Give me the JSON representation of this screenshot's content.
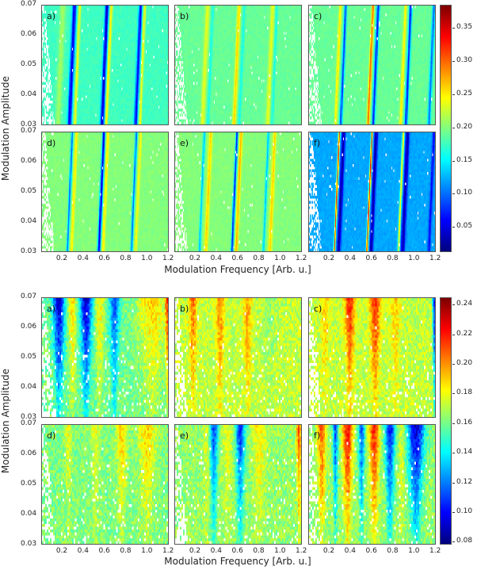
{
  "chart_data": [
    {
      "type": "heatmap",
      "xlabel": "Modulation Frequency [Arb. u.]",
      "ylabel": "Modulation Amplitude",
      "xlim": [
        0,
        1.2
      ],
      "ylim": [
        0.03,
        0.07
      ],
      "xticks": [
        "0.2",
        "0.4",
        "0.6",
        "0.8",
        "1.0",
        "1.2"
      ],
      "yticks": [
        "0.03",
        "0.04",
        "0.05",
        "0.06",
        "0.07"
      ],
      "colorbar": {
        "range": [
          0.012,
          0.385
        ],
        "ticks": [
          "0.05",
          "0.10",
          "0.15",
          "0.20",
          "0.25",
          "0.30",
          "0.35"
        ]
      },
      "tilt": 1.2,
      "noise": 0.006,
      "grow": 0,
      "panels": [
        {
          "label": "a)",
          "background": 0.175,
          "features": [
            {
              "freq": 0.31,
              "value": 0.05,
              "width": 0.014
            },
            {
              "freq": 0.36,
              "value": 0.24,
              "width": 0.01
            },
            {
              "freq": 0.62,
              "value": 0.04,
              "width": 0.013
            },
            {
              "freq": 0.66,
              "value": 0.25,
              "width": 0.01
            },
            {
              "freq": 0.94,
              "value": 0.06,
              "width": 0.012
            },
            {
              "freq": 0.98,
              "value": 0.24,
              "width": 0.01
            },
            {
              "freq": 0.2,
              "value": 0.21,
              "width": 0.02
            }
          ]
        },
        {
          "label": "b)",
          "background": 0.19,
          "features": [
            {
              "freq": 0.31,
              "value": 0.235,
              "width": 0.015
            },
            {
              "freq": 0.36,
              "value": 0.16,
              "width": 0.01
            },
            {
              "freq": 0.61,
              "value": 0.26,
              "width": 0.012
            },
            {
              "freq": 0.66,
              "value": 0.16,
              "width": 0.01
            },
            {
              "freq": 0.93,
              "value": 0.235,
              "width": 0.014
            },
            {
              "freq": 0.97,
              "value": 0.16,
              "width": 0.01
            }
          ]
        },
        {
          "label": "c)",
          "background": 0.19,
          "features": [
            {
              "freq": 0.3,
              "value": 0.25,
              "width": 0.01
            },
            {
              "freq": 0.35,
              "value": 0.08,
              "width": 0.009
            },
            {
              "freq": 0.61,
              "value": 0.3,
              "width": 0.009
            },
            {
              "freq": 0.66,
              "value": 0.07,
              "width": 0.01
            },
            {
              "freq": 0.92,
              "value": 0.25,
              "width": 0.01
            },
            {
              "freq": 0.97,
              "value": 0.07,
              "width": 0.01
            },
            {
              "freq": 1.19,
              "value": 0.1,
              "width": 0.01
            }
          ]
        },
        {
          "label": "d)",
          "background": 0.2,
          "features": [
            {
              "freq": 0.29,
              "value": 0.1,
              "width": 0.008
            },
            {
              "freq": 0.33,
              "value": 0.25,
              "width": 0.01
            },
            {
              "freq": 0.59,
              "value": 0.05,
              "width": 0.01
            },
            {
              "freq": 0.63,
              "value": 0.25,
              "width": 0.01
            },
            {
              "freq": 0.9,
              "value": 0.1,
              "width": 0.008
            },
            {
              "freq": 0.94,
              "value": 0.24,
              "width": 0.01
            }
          ]
        },
        {
          "label": "e)",
          "background": 0.2,
          "features": [
            {
              "freq": 0.28,
              "value": 0.13,
              "width": 0.008
            },
            {
              "freq": 0.34,
              "value": 0.26,
              "width": 0.012
            },
            {
              "freq": 0.59,
              "value": 0.07,
              "width": 0.008
            },
            {
              "freq": 0.63,
              "value": 0.27,
              "width": 0.011
            },
            {
              "freq": 0.89,
              "value": 0.13,
              "width": 0.008
            },
            {
              "freq": 0.95,
              "value": 0.26,
              "width": 0.012
            }
          ]
        },
        {
          "label": "f)",
          "background": 0.12,
          "features": [
            {
              "freq": 0.29,
              "value": 0.32,
              "width": 0.006
            },
            {
              "freq": 0.33,
              "value": 0.025,
              "width": 0.012
            },
            {
              "freq": 0.6,
              "value": 0.33,
              "width": 0.006
            },
            {
              "freq": 0.64,
              "value": 0.025,
              "width": 0.012
            },
            {
              "freq": 0.9,
              "value": 0.25,
              "width": 0.007
            },
            {
              "freq": 0.94,
              "value": 0.03,
              "width": 0.013
            },
            {
              "freq": 1.19,
              "value": 0.06,
              "width": 0.01
            }
          ]
        }
      ]
    },
    {
      "type": "heatmap",
      "xlabel": "Modulation Frequency [Arb. u.]",
      "ylabel": "Modulation Amplitude",
      "xlim": [
        0,
        1.2
      ],
      "ylim": [
        0.03,
        0.07
      ],
      "xticks": [
        "0.2",
        "0.4",
        "0.6",
        "0.8",
        "1.0",
        "1.2"
      ],
      "yticks": [
        "0.03",
        "0.04",
        "0.05",
        "0.06",
        "0.07"
      ],
      "colorbar": {
        "range": [
          0.078,
          0.245
        ],
        "ticks": [
          "0.08",
          "0.10",
          "0.12",
          "0.14",
          "0.16",
          "0.18",
          "0.20",
          "0.22",
          "0.24"
        ]
      },
      "tilt": 0,
      "noise": 0.01,
      "grow": 1,
      "panels": [
        {
          "label": "a)",
          "background": 0.16,
          "features": [
            {
              "freq": 0.16,
              "value": 0.09,
              "width": 0.035
            },
            {
              "freq": 0.42,
              "value": 0.09,
              "width": 0.035
            },
            {
              "freq": 0.69,
              "value": 0.11,
              "width": 0.03
            },
            {
              "freq": 0.29,
              "value": 0.19,
              "width": 0.025
            },
            {
              "freq": 0.55,
              "value": 0.185,
              "width": 0.025
            },
            {
              "freq": 1.05,
              "value": 0.19,
              "width": 0.08
            },
            {
              "freq": 1.19,
              "value": 0.21,
              "width": 0.01
            }
          ]
        },
        {
          "label": "b)",
          "background": 0.172,
          "features": [
            {
              "freq": 0.17,
              "value": 0.205,
              "width": 0.025
            },
            {
              "freq": 0.43,
              "value": 0.205,
              "width": 0.025
            },
            {
              "freq": 0.69,
              "value": 0.2,
              "width": 0.025
            },
            {
              "freq": 0.9,
              "value": 0.165,
              "width": 0.04
            }
          ]
        },
        {
          "label": "c)",
          "background": 0.172,
          "features": [
            {
              "freq": 0.15,
              "value": 0.19,
              "width": 0.03
            },
            {
              "freq": 0.39,
              "value": 0.22,
              "width": 0.03
            },
            {
              "freq": 0.63,
              "value": 0.22,
              "width": 0.03
            },
            {
              "freq": 0.82,
              "value": 0.19,
              "width": 0.03
            },
            {
              "freq": 1.19,
              "value": 0.1,
              "width": 0.008
            }
          ]
        },
        {
          "label": "d)",
          "background": 0.162,
          "features": [
            {
              "freq": 0.25,
              "value": 0.18,
              "width": 0.02
            },
            {
              "freq": 0.51,
              "value": 0.18,
              "width": 0.025
            },
            {
              "freq": 0.76,
              "value": 0.19,
              "width": 0.03
            },
            {
              "freq": 1.0,
              "value": 0.19,
              "width": 0.05
            }
          ]
        },
        {
          "label": "e)",
          "background": 0.165,
          "features": [
            {
              "freq": 0.37,
              "value": 0.11,
              "width": 0.025
            },
            {
              "freq": 0.62,
              "value": 0.105,
              "width": 0.028
            },
            {
              "freq": 0.3,
              "value": 0.18,
              "width": 0.02
            },
            {
              "freq": 0.5,
              "value": 0.18,
              "width": 0.03
            },
            {
              "freq": 0.8,
              "value": 0.185,
              "width": 0.04
            },
            {
              "freq": 1.18,
              "value": 0.21,
              "width": 0.015
            }
          ]
        },
        {
          "label": "f)",
          "background": 0.165,
          "features": [
            {
              "freq": 0.12,
              "value": 0.21,
              "width": 0.025
            },
            {
              "freq": 0.37,
              "value": 0.225,
              "width": 0.03
            },
            {
              "freq": 0.62,
              "value": 0.22,
              "width": 0.03
            },
            {
              "freq": 0.25,
              "value": 0.11,
              "width": 0.015
            },
            {
              "freq": 0.5,
              "value": 0.11,
              "width": 0.018
            },
            {
              "freq": 0.77,
              "value": 0.1,
              "width": 0.03
            },
            {
              "freq": 1.02,
              "value": 0.09,
              "width": 0.05
            },
            {
              "freq": 0.88,
              "value": 0.18,
              "width": 0.02
            }
          ]
        }
      ]
    }
  ]
}
